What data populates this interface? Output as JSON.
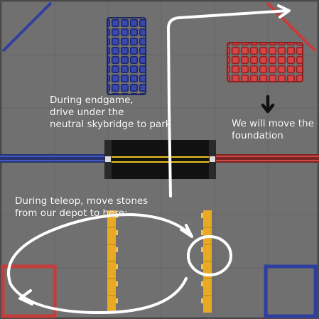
{
  "annotations": {
    "endgame": "During endgame,\ndrive under the\nneutral skybridge to park",
    "foundation": "We will move the\nfoundation",
    "teleop": "During teleop, move stones\nfrom our depot to here:"
  },
  "colors": {
    "field_mat": "#707070",
    "tile_seam": "#656565",
    "wall": "#4a4a4a",
    "alliance_blue": "#2f3fa0",
    "alliance_red": "#c63c3c",
    "stone_yellow": "#f0b42a",
    "skybridge": "#121212",
    "skybridge_stripe": "#f0c21e",
    "drawing_ink": "#ffffff",
    "arrow_ink": "#111111"
  },
  "icons": {
    "down_arrow": "black-down-arrow-icon",
    "path_arrows": "white-freehand-arrow-icon"
  }
}
